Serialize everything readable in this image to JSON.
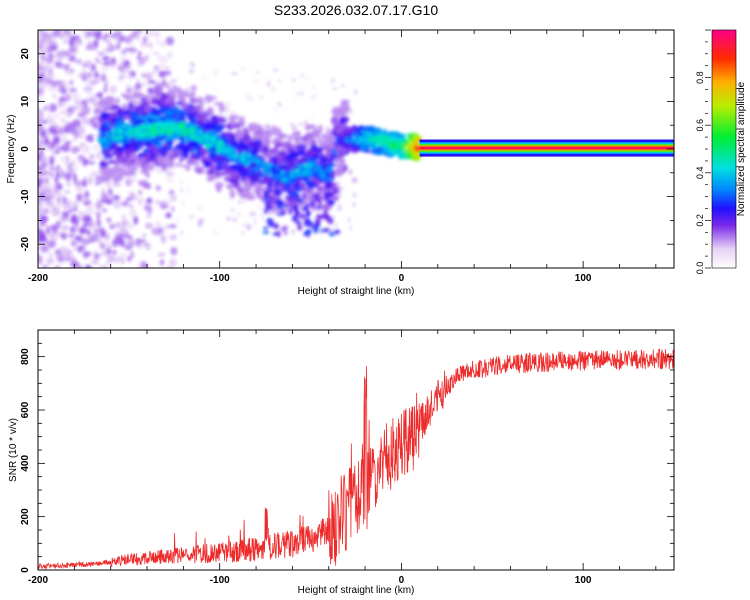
{
  "title": "S233.2026.032.07.17.G10",
  "chart_data": [
    {
      "type": "heatmap",
      "xlabel": "Height of straight line (km)",
      "ylabel": "Frequency (Hz)",
      "xlim": [
        -200,
        150
      ],
      "ylim": [
        -25,
        25
      ],
      "x_ticks": [
        -200,
        -100,
        0,
        100
      ],
      "y_ticks": [
        -20,
        -10,
        0,
        10,
        20
      ],
      "colorbar": {
        "label": "Normalized spectral amplitude",
        "range": [
          0,
          1
        ],
        "ticks": [
          0.0,
          0.2,
          0.4,
          0.6,
          0.8
        ],
        "colormap": "rainbow-white-purple-to-red"
      },
      "ridge": [
        {
          "x": -160,
          "f": 2.5,
          "a": 0.35
        },
        {
          "x": -150,
          "f": 3.5,
          "a": 0.35
        },
        {
          "x": -140,
          "f": 4.0,
          "a": 0.4
        },
        {
          "x": -130,
          "f": 4.5,
          "a": 0.4
        },
        {
          "x": -120,
          "f": 4.0,
          "a": 0.4
        },
        {
          "x": -110,
          "f": 2.5,
          "a": 0.35
        },
        {
          "x": -100,
          "f": 0.5,
          "a": 0.35
        },
        {
          "x": -90,
          "f": -1.5,
          "a": 0.3
        },
        {
          "x": -80,
          "f": -3.0,
          "a": 0.3
        },
        {
          "x": -70,
          "f": -5.0,
          "a": 0.25
        },
        {
          "x": -60,
          "f": -5.5,
          "a": 0.3
        },
        {
          "x": -50,
          "f": -4.0,
          "a": 0.3
        },
        {
          "x": -40,
          "f": -5.5,
          "a": 0.25
        },
        {
          "x": -35,
          "f": 2.0,
          "a": 0.25
        },
        {
          "x": -20,
          "f": 2.0,
          "a": 0.45
        },
        {
          "x": -10,
          "f": 1.5,
          "a": 0.5
        },
        {
          "x": 0,
          "f": 0.5,
          "a": 0.55
        },
        {
          "x": 10,
          "f": 0.3,
          "a": 0.9
        },
        {
          "x": 50,
          "f": 0.2,
          "a": 0.95
        },
        {
          "x": 100,
          "f": 0.2,
          "a": 0.95
        },
        {
          "x": 150,
          "f": 0.2,
          "a": 0.95
        }
      ]
    },
    {
      "type": "line",
      "xlabel": "Height of straight line (km)",
      "ylabel": "SNR (10 * v/v)",
      "xlim": [
        -200,
        150
      ],
      "ylim": [
        0,
        900
      ],
      "x_ticks": [
        -200,
        -100,
        0,
        100
      ],
      "y_ticks": [
        0,
        200,
        400,
        600,
        800
      ],
      "color": "#ee2b2b",
      "series": [
        {
          "x": [
            -200,
            -190,
            -180,
            -170,
            -160,
            -150,
            -140,
            -130,
            -120,
            -110,
            -100,
            -90,
            -80,
            -70,
            -60,
            -50,
            -40,
            -35,
            -30,
            -25,
            -20,
            -15,
            -10,
            -5,
            0,
            5,
            10,
            15,
            20,
            25,
            30,
            40,
            50,
            60,
            80,
            100,
            120,
            150
          ],
          "values": [
            15,
            15,
            20,
            22,
            30,
            40,
            45,
            50,
            55,
            60,
            65,
            70,
            80,
            90,
            100,
            115,
            150,
            180,
            230,
            260,
            280,
            340,
            400,
            440,
            470,
            500,
            540,
            600,
            650,
            690,
            720,
            750,
            765,
            775,
            780,
            785,
            790,
            790
          ]
        }
      ]
    }
  ]
}
